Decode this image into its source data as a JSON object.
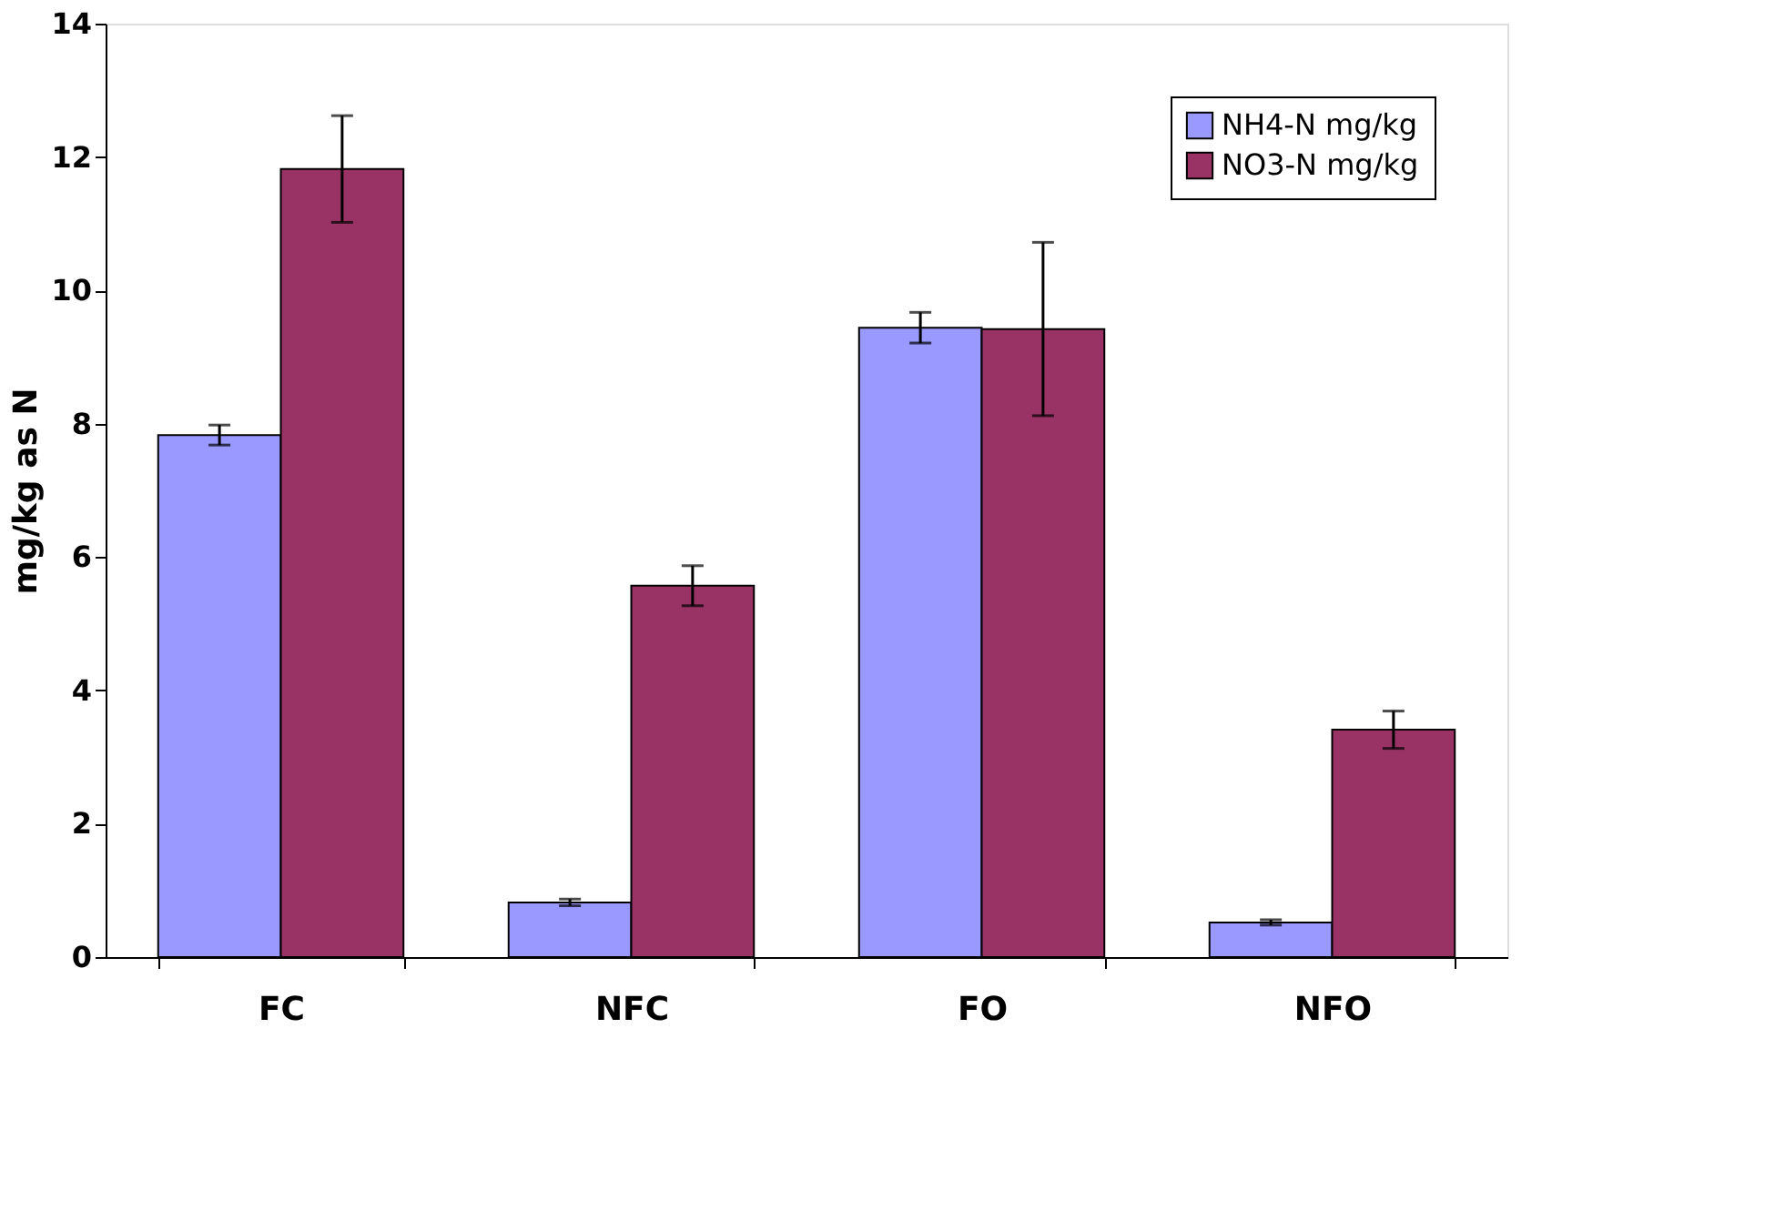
{
  "chart_data": {
    "type": "bar",
    "ylabel": "mg/kg as N",
    "categories": [
      "FC",
      "NFC",
      "FO",
      "NFO"
    ],
    "series": [
      {
        "name": "NH4-N mg/kg",
        "color": "#9999ff",
        "values": [
          7.83,
          0.82,
          9.44,
          0.52
        ],
        "errors": [
          0.15,
          0.05,
          0.23,
          0.04
        ]
      },
      {
        "name": "NO3-N mg/kg",
        "color": "#993366",
        "values": [
          11.82,
          5.57,
          9.42,
          3.41
        ],
        "errors": [
          0.8,
          0.3,
          1.3,
          0.28
        ]
      }
    ],
    "ylim": [
      0,
      14
    ],
    "yticks": [
      0,
      2,
      4,
      6,
      8,
      10,
      12,
      14
    ],
    "grid": false,
    "legend": "top right"
  }
}
